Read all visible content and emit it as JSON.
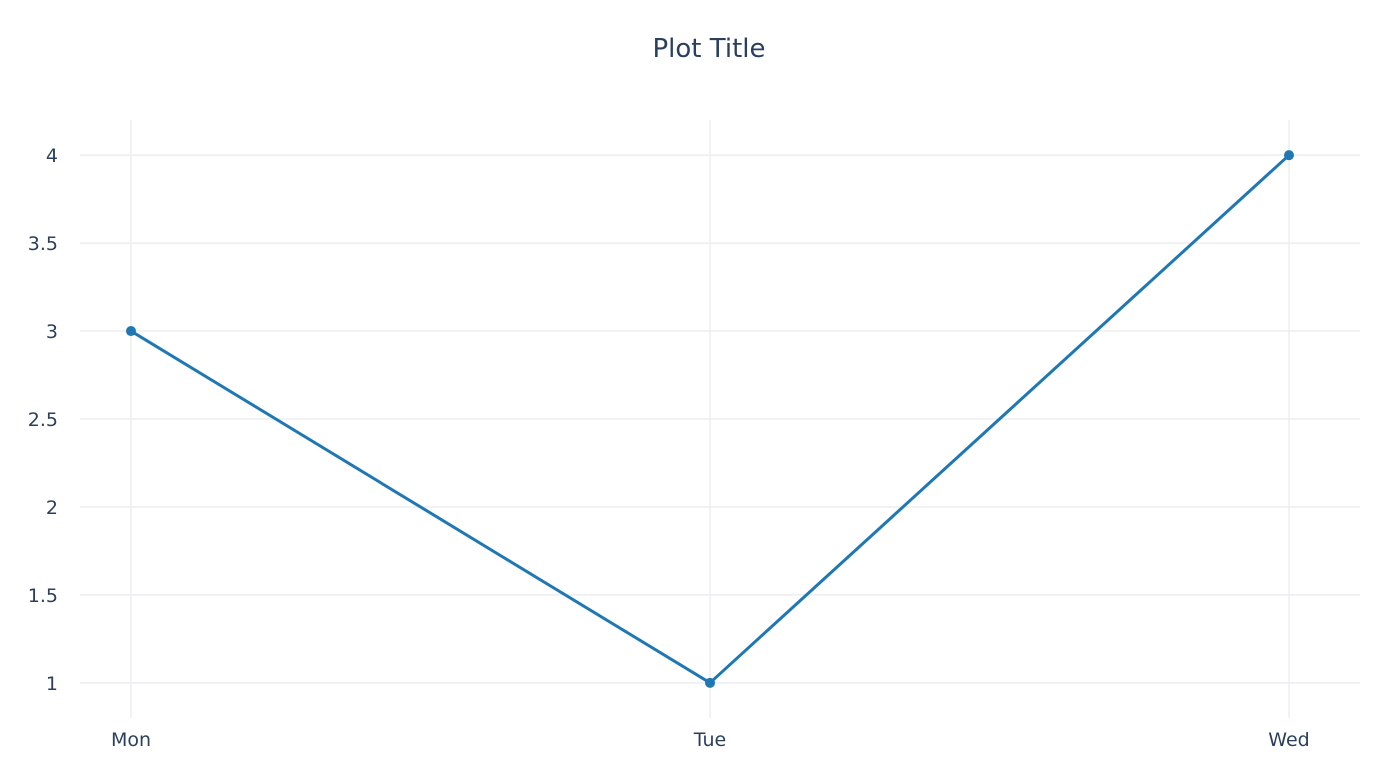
{
  "chart_data": {
    "type": "line",
    "title": "Plot Title",
    "xlabel": "",
    "ylabel": "",
    "categories": [
      "Mon",
      "Tue",
      "Wed"
    ],
    "series": [
      {
        "values": [
          3,
          1,
          4
        ],
        "color": "#1f77b4",
        "markers": true
      }
    ],
    "ylim": [
      0.8,
      4.2
    ],
    "yticks": [
      1,
      1.5,
      2,
      2.5,
      3,
      3.5,
      4
    ],
    "ytick_labels": [
      "1",
      "1.5",
      "2",
      "2.5",
      "3",
      "3.5",
      "4"
    ],
    "grid": true,
    "legend": "none"
  }
}
